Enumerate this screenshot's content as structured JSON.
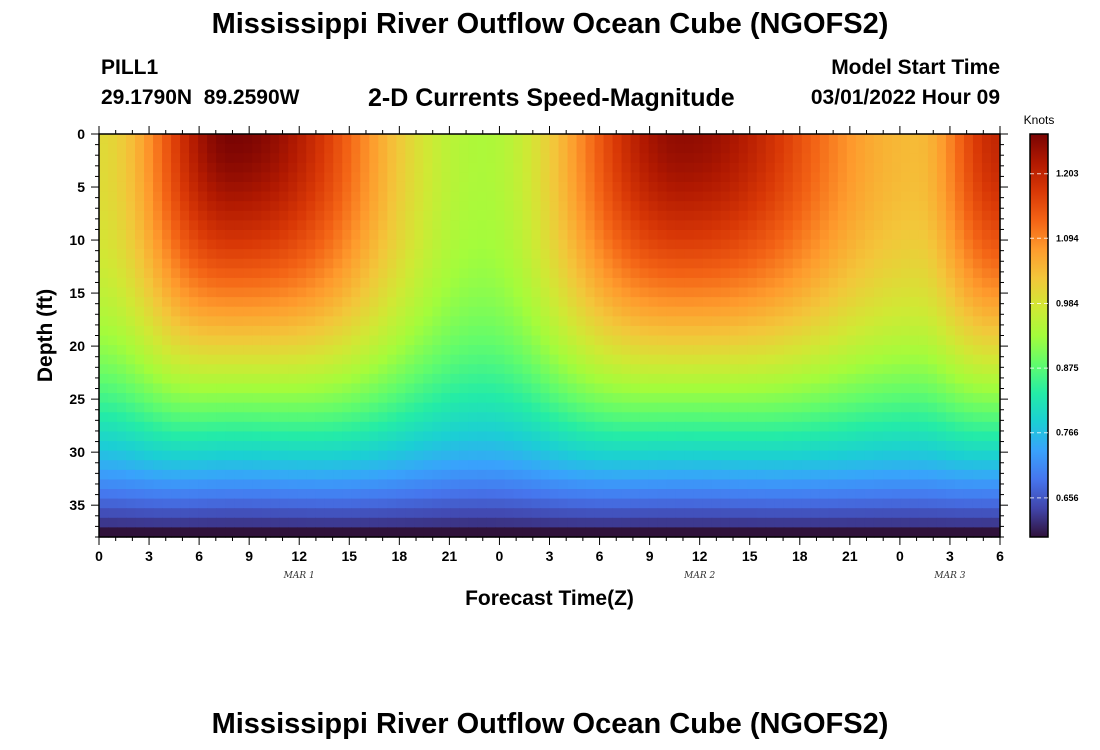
{
  "header": {
    "title": "Mississippi River Outflow Ocean Cube (NGOFS2)",
    "station_id": "PILL1",
    "station_coords": "29.1790N  89.2590W",
    "panel_title": "2-D Currents Speed-Magnitude",
    "model_start_label": "Model Start Time",
    "model_start_value": "03/01/2022 Hour 09"
  },
  "footer": {
    "title": "Mississippi River Outflow Ocean Cube (NGOFS2)"
  },
  "chart_data": {
    "type": "heatmap",
    "title": "2-D Currents Speed-Magnitude",
    "xlabel": "Forecast Time(Z)",
    "ylabel": "Depth (ft)",
    "x_tick_labels": [
      "0",
      "3",
      "6",
      "9",
      "12",
      "15",
      "18",
      "21",
      "0",
      "3",
      "6",
      "9",
      "12",
      "15",
      "18",
      "21",
      "0",
      "3",
      "6"
    ],
    "date_labels": [
      {
        "text": "MAR 1",
        "hour": 12
      },
      {
        "text": "MAR 2",
        "hour": 36
      },
      {
        "text": "MAR 3",
        "hour": 51
      }
    ],
    "x_range_hours": [
      0,
      54
    ],
    "y_ticks": [
      "0",
      "5",
      "10",
      "15",
      "20",
      "25",
      "30",
      "35"
    ],
    "y_range": [
      0,
      38
    ],
    "y_inverted": true,
    "colorbar": {
      "unit": "Knots",
      "tick_labels": [
        "1.203",
        "1.094",
        "0.984",
        "0.875",
        "0.766",
        "0.656"
      ],
      "tick_values": [
        1.203,
        1.094,
        0.984,
        0.875,
        0.766,
        0.656
      ],
      "range": [
        0.59,
        1.27
      ]
    },
    "surface_speed_profile": [
      {
        "hour": 0,
        "value": 1.0
      },
      {
        "hour": 8,
        "value": 1.27
      },
      {
        "hour": 23,
        "value": 0.94
      },
      {
        "hour": 35,
        "value": 1.25
      },
      {
        "hour": 49,
        "value": 1.04
      },
      {
        "hour": 54,
        "value": 1.2
      }
    ],
    "colors": {
      "scale": [
        "#30123b",
        "#4145ab",
        "#4675ed",
        "#39a2fc",
        "#1bcfd4",
        "#24eca6",
        "#61fc6c",
        "#a4fc3b",
        "#d1e834",
        "#f3c63a",
        "#fe9b2d",
        "#f36315",
        "#d93806",
        "#b11901",
        "#7a0403"
      ]
    }
  }
}
